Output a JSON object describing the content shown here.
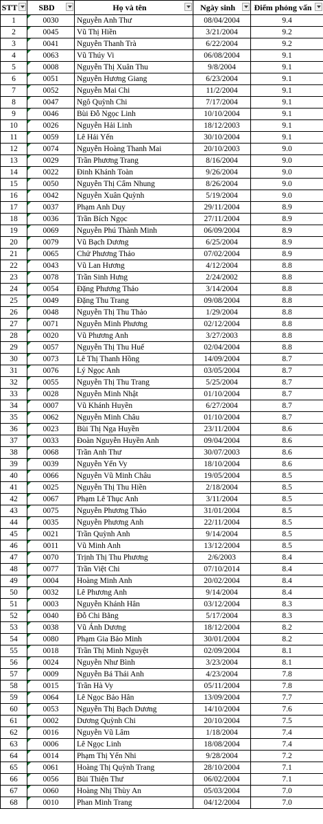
{
  "table": {
    "headers": [
      "STT",
      "SBD",
      "Họ và tên",
      "Ngày sinh",
      "Điểm phỏng vấn"
    ],
    "rows": [
      [
        "1",
        "0030",
        "Nguyễn Anh Thư",
        "08/04/2004",
        "9.4"
      ],
      [
        "2",
        "0045",
        "Vũ Thị Hiền",
        "3/21/2004",
        "9.2"
      ],
      [
        "3",
        "0041",
        "Nguyễn Thanh Trà",
        "6/22/2004",
        "9.2"
      ],
      [
        "4",
        "0063",
        "Vũ Thúy Vi",
        "06/08/2004",
        "9.1"
      ],
      [
        "5",
        "0008",
        "Nguyễn Thị Xuân Thu",
        "9/8/2004",
        "9.1"
      ],
      [
        "6",
        "0051",
        "Nguyễn Hương Giang",
        "6/23/2004",
        "9.1"
      ],
      [
        "7",
        "0052",
        "Nguyễn Mai Chi",
        "11/2/2004",
        "9.1"
      ],
      [
        "8",
        "0047",
        "Ngô Quỳnh Chi",
        "7/17/2004",
        "9.1"
      ],
      [
        "9",
        "0046",
        "Bùi Đỗ Ngọc Linh",
        "10/10/2004",
        "9.1"
      ],
      [
        "10",
        "0026",
        "Nguyễn Hải Linh",
        "18/12/2003",
        "9.1"
      ],
      [
        "11",
        "0059",
        "Lê Hải Yến",
        "30/10/2004",
        "9.1"
      ],
      [
        "12",
        "0074",
        "Nguyễn Hoàng Thanh Mai",
        "20/10/2003",
        "9.0"
      ],
      [
        "13",
        "0029",
        "Trần Phương Trang",
        "8/16/2004",
        "9.0"
      ],
      [
        "14",
        "0022",
        "Đinh Khánh Toàn",
        "9/26/2004",
        "9.0"
      ],
      [
        "15",
        "0050",
        "Nguyễn Thị Cẩm Nhung",
        "8/26/2004",
        "9.0"
      ],
      [
        "16",
        "0042",
        "Nguyễn Xuân Quỳnh",
        "5/19/2004",
        "9.0"
      ],
      [
        "17",
        "0037",
        "Phạm Anh Duy",
        "29/11/2004",
        "8.9"
      ],
      [
        "18",
        "0036",
        "Trần Bích Ngọc",
        "27/11/2004",
        "8.9"
      ],
      [
        "19",
        "0069",
        "Nguyễn Phú Thành Minh",
        "06/09/2004",
        "8.9"
      ],
      [
        "20",
        "0079",
        "Vũ Bạch Dương",
        "6/25/2004",
        "8.9"
      ],
      [
        "21",
        "0065",
        "Chử Phương Thảo",
        "07/02/2004",
        "8.9"
      ],
      [
        "22",
        "0043",
        "Vũ Lan Hương",
        "4/12/2004",
        "8.8"
      ],
      [
        "23",
        "0078",
        "Trần Sinh Hưng",
        "2/24/2002",
        "8.8"
      ],
      [
        "24",
        "0054",
        "Đặng Phương Thảo",
        "3/14/2004",
        "8.8"
      ],
      [
        "25",
        "0049",
        "Đặng Thu Trang",
        "09/08/2004",
        "8.8"
      ],
      [
        "26",
        "0048",
        "Nguyễn Thị Thu Thảo",
        "1/29/2004",
        "8.8"
      ],
      [
        "27",
        "0071",
        "Nguyễn Minh Phương",
        "02/12/2004",
        "8.8"
      ],
      [
        "28",
        "0020",
        "Vũ Phương Anh",
        "3/27/2003",
        "8.8"
      ],
      [
        "29",
        "0057",
        "Nguyễn Thị Thu Huế",
        "02/04/2004",
        "8.8"
      ],
      [
        "30",
        "0073",
        "Lê Thị Thanh Hồng",
        "14/09/2004",
        "8.7"
      ],
      [
        "31",
        "0076",
        "Lý Ngọc Anh",
        "03/05/2004",
        "8.7"
      ],
      [
        "32",
        "0055",
        "Nguyễn Thị Thu Trang",
        "5/25/2004",
        "8.7"
      ],
      [
        "33",
        "0028",
        "Nguyễn Minh Nhật",
        "01/10/2004",
        "8.7"
      ],
      [
        "34",
        "0007",
        "Vũ Khánh Huyền",
        "6/27/2004",
        "8.7"
      ],
      [
        "35",
        "0062",
        "Nguyễn Minh Châu",
        "01/10/2004",
        "8.7"
      ],
      [
        "36",
        "0023",
        "Bùi Thị Nga Huyền",
        "23/11/2004",
        "8.6"
      ],
      [
        "37",
        "0033",
        "Đoàn Nguyễn Huyền Anh",
        "09/04/2004",
        "8.6"
      ],
      [
        "38",
        "0068",
        "Trần Anh Thư",
        "30/07/2003",
        "8.6"
      ],
      [
        "39",
        "0039",
        "Nguyễn Yến Vy",
        "18/10/2004",
        "8.6"
      ],
      [
        "40",
        "0066",
        "Nguyễn Vũ Minh Châu",
        "19/05/2004",
        "8.5"
      ],
      [
        "41",
        "0025",
        "Nguyễn Thị Thu Hiền",
        "2/18/2004",
        "8.5"
      ],
      [
        "42",
        "0067",
        "Phạm Lê Thục Anh",
        "3/11/2004",
        "8.5"
      ],
      [
        "43",
        "0075",
        "Nguyễn Phương Thảo",
        "31/01/2004",
        "8.5"
      ],
      [
        "44",
        "0035",
        "Nguyễn Phương Anh",
        "22/11/2004",
        "8.5"
      ],
      [
        "45",
        "0021",
        "Trần Quỳnh Anh",
        "9/14/2004",
        "8.5"
      ],
      [
        "46",
        "0011",
        "Vũ Minh Anh",
        "13/12/2004",
        "8.5"
      ],
      [
        "47",
        "0070",
        "Trịnh Thị Thu Phương",
        "2/6/2003",
        "8.4"
      ],
      [
        "48",
        "0077",
        "Trần Việt Chi",
        "07/10/2014",
        "8.4"
      ],
      [
        "49",
        "0004",
        "Hoàng Minh Anh",
        "20/02/2004",
        "8.4"
      ],
      [
        "50",
        "0032",
        "Lê Phương Anh",
        "9/14/2004",
        "8.4"
      ],
      [
        "51",
        "0003",
        "Nguyễn Khánh Hân",
        "03/12/2004",
        "8.3"
      ],
      [
        "52",
        "0040",
        "Đỗ Chi Bằng",
        "5/17/2004",
        "8.3"
      ],
      [
        "53",
        "0038",
        "Vũ Ánh Dương",
        "18/12/2004",
        "8.2"
      ],
      [
        "54",
        "0080",
        "Phạm Gia Bảo Minh",
        "30/01/2004",
        "8.2"
      ],
      [
        "55",
        "0018",
        "Trần Thị Minh Nguyệt",
        "02/09/2004",
        "8.1"
      ],
      [
        "56",
        "0024",
        "Nguyễn Như Bình",
        "3/23/2004",
        "8.1"
      ],
      [
        "57",
        "0009",
        "Nguyễn Bá Thái Anh",
        "4/23/2004",
        "7.8"
      ],
      [
        "58",
        "0015",
        "Trần Hà Vy",
        "05/11/2004",
        "7.8"
      ],
      [
        "59",
        "0064",
        "Lê Ngọc Bảo Hân",
        "13/09/2004",
        "7.7"
      ],
      [
        "60",
        "0053",
        "Nguyễn Thị Bạch Dương",
        "14/10/2004",
        "7.6"
      ],
      [
        "61",
        "0002",
        "Dương Quỳnh Chi",
        "20/10/2004",
        "7.5"
      ],
      [
        "62",
        "0016",
        "Nguyễn Vũ Lâm",
        "1/18/2004",
        "7.4"
      ],
      [
        "63",
        "0006",
        "Lê Ngọc Linh",
        "18/08/2004",
        "7.4"
      ],
      [
        "64",
        "0014",
        "Phạm Thị Yến Nhi",
        "9/28/2004",
        "7.2"
      ],
      [
        "65",
        "0061",
        "Hoàng Thị Quỳnh Trang",
        "28/10/2004",
        "7.1"
      ],
      [
        "66",
        "0056",
        "Bùi Thiện Thư",
        "06/02/2004",
        "7.1"
      ],
      [
        "67",
        "0060",
        "Hoàng Nhị Thùy An",
        "05/03/2004",
        "7.0"
      ],
      [
        "68",
        "0010",
        "Phan Minh Trang",
        "04/12/2004",
        "7.0"
      ]
    ]
  }
}
